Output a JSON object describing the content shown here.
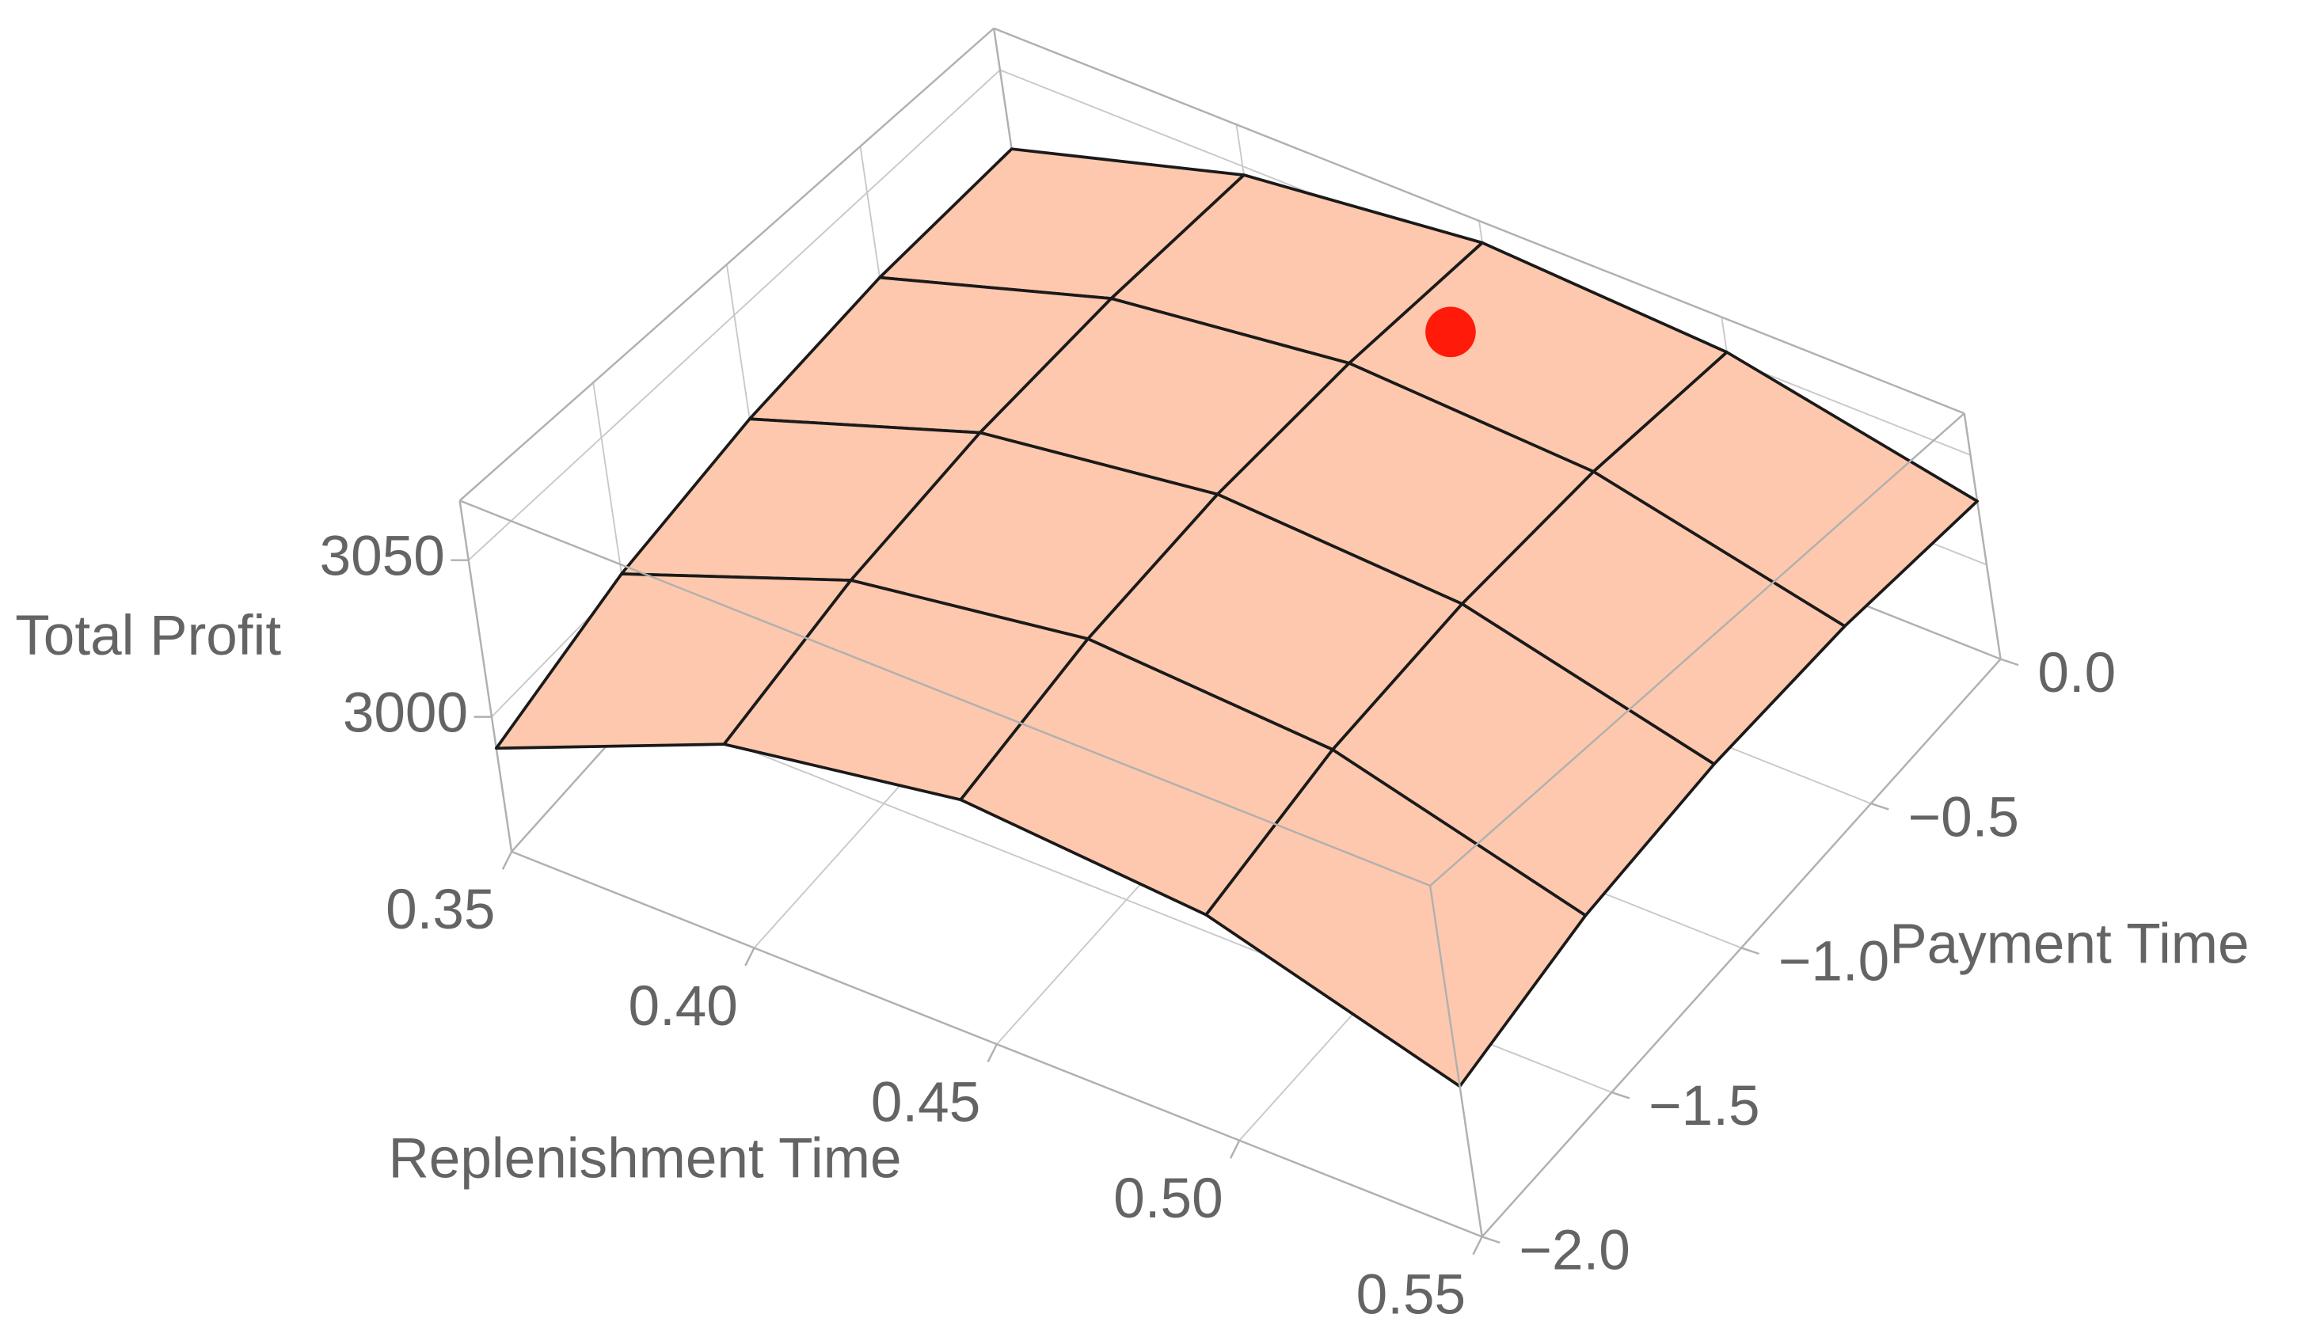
{
  "chart_data": {
    "type": "surface3d",
    "z_label": "Total Profit",
    "x_label": "Replenishment Time",
    "y_label": "Payment Time",
    "x": [
      0.35,
      0.4,
      0.45,
      0.5,
      0.55
    ],
    "y": [
      -2,
      -1.5,
      -1,
      -0.5,
      0
    ],
    "z": [
      [
        2990,
        3003,
        3011,
        3015,
        3014
      ],
      [
        3022,
        3034,
        3042,
        3046,
        3046
      ],
      [
        3035,
        3047,
        3055,
        3059,
        3059
      ],
      [
        3029,
        3042,
        3050,
        3054,
        3053
      ],
      [
        3005,
        3018,
        3026,
        3030,
        3029
      ]
    ],
    "xlim": [
      0.35,
      0.55
    ],
    "ylim": [
      -2,
      0
    ],
    "zlim": [
      2957,
      3069
    ],
    "xticks": [
      0.35,
      {
        "value": 0.4,
        "label": "0.40"
      },
      0.45,
      {
        "value": 0.5,
        "label": "0.50"
      },
      0.55
    ],
    "yticks": [
      {
        "value": -2,
        "label": "−2.0"
      },
      {
        "value": -1.5,
        "label": "−1.5"
      },
      {
        "value": -1,
        "label": "−1.0"
      },
      {
        "value": -0.5,
        "label": "−0.5"
      },
      {
        "value": 0,
        "label": "0.0"
      }
    ],
    "zticks": [
      3000,
      3050
    ],
    "grid": true,
    "surface_color": "#fdc8ad",
    "mesh_color": "#1a1a1a",
    "point": {
      "x": 0.46,
      "y": -0.3,
      "z": 3060,
      "color": "#ff1a0a"
    }
  }
}
